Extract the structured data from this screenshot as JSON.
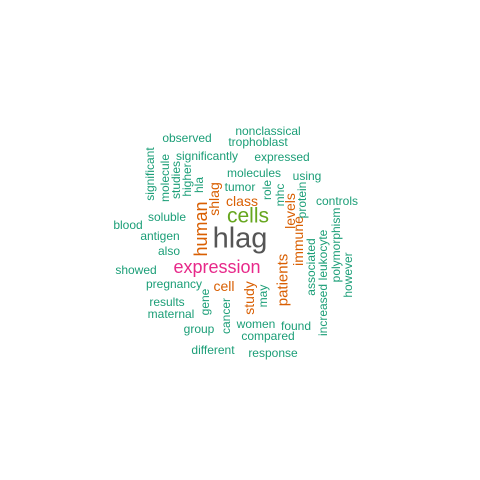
{
  "colors": {
    "teal": "#1b9e77",
    "orange": "#d95f02",
    "magenta": "#e7298a",
    "green": "#66a61e",
    "gray": "#555555"
  },
  "words": [
    {
      "text": "hlag",
      "color": "gray"
    },
    {
      "text": "cells",
      "color": "green"
    },
    {
      "text": "expression",
      "color": "magenta"
    },
    {
      "text": "human",
      "color": "orange"
    },
    {
      "text": "shlag",
      "color": "orange"
    },
    {
      "text": "class",
      "color": "orange"
    },
    {
      "text": "cell",
      "color": "orange"
    },
    {
      "text": "patients",
      "color": "orange"
    },
    {
      "text": "immune",
      "color": "orange"
    },
    {
      "text": "levels",
      "color": "orange"
    },
    {
      "text": "study",
      "color": "orange"
    },
    {
      "text": "nonclassical",
      "color": "teal"
    },
    {
      "text": "observed",
      "color": "teal"
    },
    {
      "text": "trophoblast",
      "color": "teal"
    },
    {
      "text": "significantly",
      "color": "teal"
    },
    {
      "text": "expressed",
      "color": "teal"
    },
    {
      "text": "significant",
      "color": "teal"
    },
    {
      "text": "molecule",
      "color": "teal"
    },
    {
      "text": "studies",
      "color": "teal"
    },
    {
      "text": "higher",
      "color": "teal"
    },
    {
      "text": "hla",
      "color": "teal"
    },
    {
      "text": "molecules",
      "color": "teal"
    },
    {
      "text": "using",
      "color": "teal"
    },
    {
      "text": "tumor",
      "color": "teal"
    },
    {
      "text": "role",
      "color": "teal"
    },
    {
      "text": "mhc",
      "color": "teal"
    },
    {
      "text": "protein",
      "color": "teal"
    },
    {
      "text": "controls",
      "color": "teal"
    },
    {
      "text": "blood",
      "color": "teal"
    },
    {
      "text": "soluble",
      "color": "teal"
    },
    {
      "text": "antigen",
      "color": "teal"
    },
    {
      "text": "also",
      "color": "teal"
    },
    {
      "text": "associated",
      "color": "teal"
    },
    {
      "text": "leukocyte",
      "color": "teal"
    },
    {
      "text": "polymorphism",
      "color": "teal"
    },
    {
      "text": "showed",
      "color": "teal"
    },
    {
      "text": "pregnancy",
      "color": "teal"
    },
    {
      "text": "however",
      "color": "teal"
    },
    {
      "text": "results",
      "color": "teal"
    },
    {
      "text": "gene",
      "color": "teal"
    },
    {
      "text": "may",
      "color": "teal"
    },
    {
      "text": "increased",
      "color": "teal"
    },
    {
      "text": "maternal",
      "color": "teal"
    },
    {
      "text": "cancer",
      "color": "teal"
    },
    {
      "text": "group",
      "color": "teal"
    },
    {
      "text": "women",
      "color": "teal"
    },
    {
      "text": "found",
      "color": "teal"
    },
    {
      "text": "compared",
      "color": "teal"
    },
    {
      "text": "different",
      "color": "teal"
    },
    {
      "text": "response",
      "color": "teal"
    }
  ]
}
